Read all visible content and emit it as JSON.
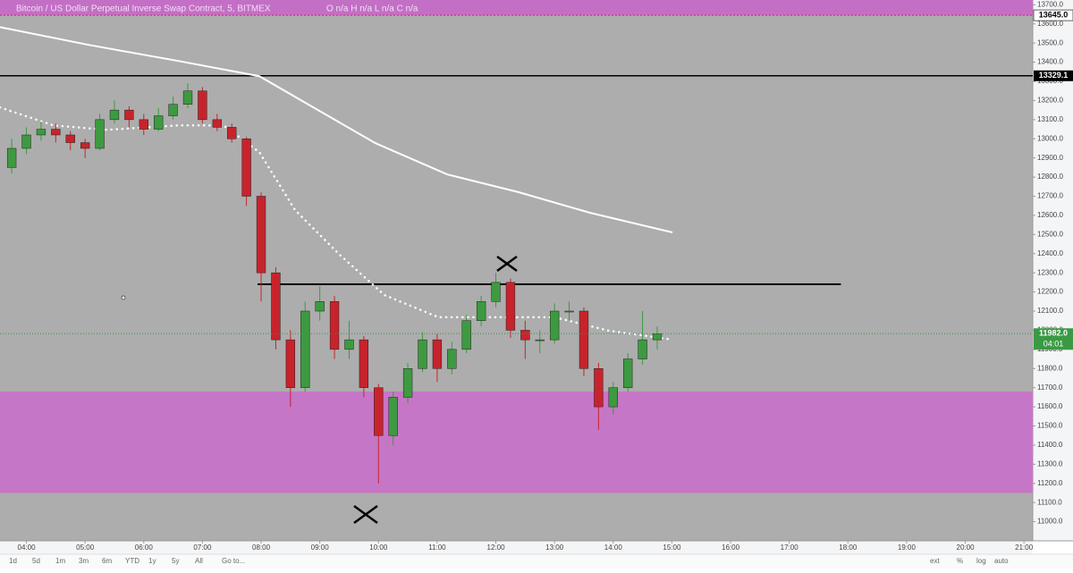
{
  "chart_data": {
    "type": "candlestick",
    "title": "Bitcoin / US Dollar Perpetual Inverse Swap Contract, 5, BITMEX",
    "ohlc_legend": "O n/a H n/a L n/a C n/a",
    "x": [
      3.75,
      4.0,
      4.25,
      4.5,
      4.75,
      5.0,
      5.25,
      5.5,
      5.75,
      6.0,
      6.25,
      6.5,
      6.75,
      7.0,
      7.25,
      7.5,
      7.75,
      8.0,
      8.25,
      8.5,
      8.75,
      9.0,
      9.25,
      9.5,
      9.75,
      10.0,
      10.25,
      10.5,
      10.75,
      11.0,
      11.25,
      11.5,
      11.75,
      12.0,
      12.25,
      12.5,
      12.75,
      13.0,
      13.25,
      13.5,
      13.75,
      14.0,
      14.25,
      14.5,
      14.75
    ],
    "open": [
      12850,
      12950,
      13020,
      13050,
      13020,
      12980,
      12950,
      13100,
      13150,
      13100,
      13050,
      13120,
      13180,
      13250,
      13100,
      13060,
      13000,
      12700,
      12300,
      11950,
      11700,
      12100,
      12150,
      11900,
      11950,
      11700,
      11450,
      11650,
      11800,
      11950,
      11800,
      11900,
      12050,
      12150,
      12250,
      12000,
      11950,
      11950,
      12100,
      12100,
      11800,
      11600,
      11700,
      11850,
      11950
    ],
    "high": [
      13000,
      13060,
      13090,
      13080,
      13040,
      13000,
      13130,
      13200,
      13170,
      13130,
      13160,
      13220,
      13290,
      13270,
      13130,
      13080,
      13010,
      12720,
      12330,
      12000,
      12150,
      12230,
      12180,
      12050,
      11970,
      11720,
      11680,
      11830,
      11990,
      11980,
      11940,
      12080,
      12180,
      12300,
      12270,
      12050,
      12000,
      12140,
      12150,
      12120,
      11830,
      11730,
      11880,
      12100,
      12020
    ],
    "low": [
      12820,
      12920,
      12990,
      12980,
      12940,
      12900,
      12940,
      13080,
      13060,
      13020,
      13040,
      13100,
      13160,
      13080,
      13040,
      12980,
      12650,
      12150,
      11900,
      11600,
      11680,
      12050,
      11850,
      11850,
      11650,
      11200,
      11400,
      11620,
      11780,
      11730,
      11770,
      11880,
      12020,
      12120,
      11960,
      11850,
      11880,
      11930,
      12050,
      11760,
      11480,
      11560,
      11680,
      11820,
      11900
    ],
    "close": [
      12950,
      13020,
      13050,
      13020,
      12980,
      12950,
      13100,
      13150,
      13100,
      13050,
      13120,
      13180,
      13250,
      13100,
      13060,
      13000,
      12700,
      12300,
      11950,
      11700,
      12100,
      12150,
      11900,
      11950,
      11700,
      11450,
      11650,
      11800,
      11950,
      11800,
      11900,
      12050,
      12150,
      12250,
      12000,
      11950,
      11950,
      12100,
      12100,
      11800,
      11600,
      11700,
      11850,
      11950,
      11982
    ],
    "up_color": "#3d9a40",
    "down_color": "#c8232c",
    "moving_averages": [
      {
        "style": "solid",
        "color": "#ffffff",
        "x": [
          3.55,
          5.07,
          6.6,
          7.97,
          8.89,
          9.95,
          11.17,
          12.39,
          13.61,
          15.01
        ],
        "values": [
          13583,
          13490,
          13406,
          13327,
          13164,
          12977,
          12814,
          12721,
          12613,
          12511
        ]
      },
      {
        "style": "dotted",
        "color": "#ffffff",
        "x": [
          3.55,
          4.46,
          5.38,
          6.6,
          7.36,
          7.97,
          8.58,
          9.34,
          10.1,
          11.02,
          11.93,
          13.0,
          13.92,
          15.01
        ],
        "values": [
          13164,
          13070,
          13047,
          13070,
          13070,
          12930,
          12627,
          12394,
          12184,
          12068,
          12068,
          12068,
          11998,
          11951
        ]
      }
    ],
    "levels": [
      {
        "value": 13329.1,
        "label": "13329.1"
      }
    ],
    "segment": {
      "value": 12240,
      "x": [
        7.94,
        17.88
      ]
    },
    "zones": [
      {
        "low": {
          "value": 13645,
          "label": "13645.0"
        },
        "high": 13725,
        "color": "#c36fc6"
      },
      {
        "low": 11150,
        "high": 11680,
        "color": "#c676c6"
      }
    ],
    "last_price": {
      "value": 11982,
      "label": "11982.0"
    },
    "countdown": "04:01",
    "xlim": [
      3.55,
      21.15
    ],
    "ylim": [
      10900,
      13725
    ],
    "xticks": [
      {
        "value": 4,
        "label": "04:00"
      },
      {
        "value": 5,
        "label": "05:00"
      },
      {
        "value": 6,
        "label": "06:00"
      },
      {
        "value": 7,
        "label": "07:00"
      },
      {
        "value": 8,
        "label": "08:00"
      },
      {
        "value": 9,
        "label": "09:00"
      },
      {
        "value": 10,
        "label": "10:00"
      },
      {
        "value": 11,
        "label": "11:00"
      },
      {
        "value": 12,
        "label": "12:00"
      },
      {
        "value": 13,
        "label": "13:00"
      },
      {
        "value": 14,
        "label": "14:00"
      },
      {
        "value": 15,
        "label": "15:00"
      },
      {
        "value": 16,
        "label": "16:00"
      },
      {
        "value": 17,
        "label": "17:00"
      },
      {
        "value": 18,
        "label": "18:00"
      },
      {
        "value": 19,
        "label": "19:00"
      },
      {
        "value": 20,
        "label": "20:00"
      },
      {
        "value": 21,
        "label": "21:00"
      }
    ],
    "yticks": [
      {
        "value": 11000,
        "label": "11000.0"
      },
      {
        "value": 11100,
        "label": "11100.0"
      },
      {
        "value": 11200,
        "label": "11200.0"
      },
      {
        "value": 11300,
        "label": "11300.0"
      },
      {
        "value": 11400,
        "label": "11400.0"
      },
      {
        "value": 11500,
        "label": "11500.0"
      },
      {
        "value": 11600,
        "label": "11600.0"
      },
      {
        "value": 11700,
        "label": "11700.0"
      },
      {
        "value": 11800,
        "label": "11800.0"
      },
      {
        "value": 11900,
        "label": "11900.0"
      },
      {
        "value": 12000,
        "label": "12000.0"
      },
      {
        "value": 12100,
        "label": "12100.0"
      },
      {
        "value": 12200,
        "label": "12200.0"
      },
      {
        "value": 12300,
        "label": "12300.0"
      },
      {
        "value": 12400,
        "label": "12400.0"
      },
      {
        "value": 12500,
        "label": "12500.0"
      },
      {
        "value": 12600,
        "label": "12600.0"
      },
      {
        "value": 12700,
        "label": "12700.0"
      },
      {
        "value": 12800,
        "label": "12800.0"
      },
      {
        "value": 12900,
        "label": "12900.0"
      },
      {
        "value": 13000,
        "label": "13000.0"
      },
      {
        "value": 13100,
        "label": "13100.0"
      },
      {
        "value": 13200,
        "label": "13200.0"
      },
      {
        "value": 13300,
        "label": "13300.0"
      },
      {
        "value": 13400,
        "label": "13400.0"
      },
      {
        "value": 13500,
        "label": "13500.0"
      },
      {
        "value": 13600,
        "label": "13600.0"
      },
      {
        "value": 13700,
        "label": "13700.0"
      }
    ],
    "grid": false
  },
  "toolbar": {
    "ranges": [
      "1d",
      "5d",
      "1m",
      "3m",
      "6m",
      "YTD",
      "1y",
      "5y",
      "All"
    ],
    "goto": "Go to...",
    "options": [
      "ext",
      "%",
      "log",
      "auto"
    ]
  }
}
